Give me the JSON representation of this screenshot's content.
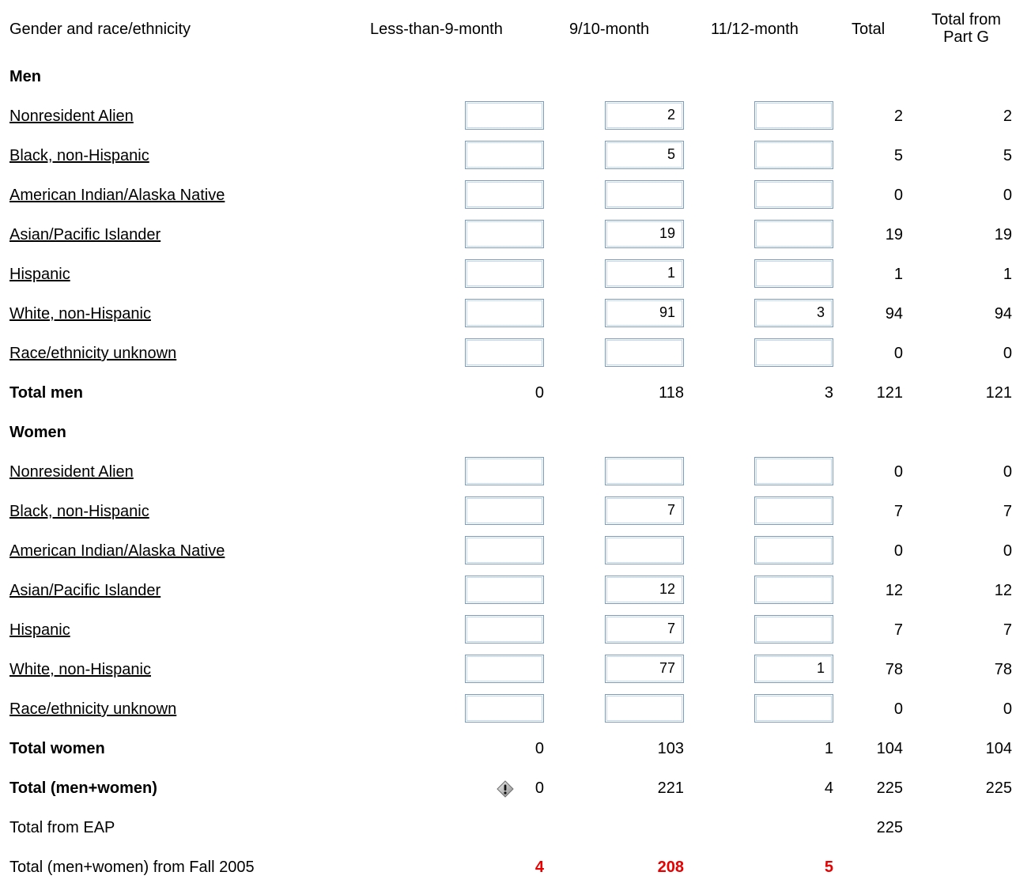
{
  "header": {
    "col_label": "Gender and race/ethnicity",
    "col1": "Less-than-9-month",
    "col2": "9/10-month",
    "col3": "11/12-month",
    "col4": "Total",
    "col5_line1": "Total from",
    "col5_line2": "Part G"
  },
  "men": {
    "section_label": "Men",
    "rows": [
      {
        "label": "Nonresident Alien",
        "c1": "",
        "c2": "2",
        "c3": "",
        "total": "2",
        "partg": "2"
      },
      {
        "label": "Black, non-Hispanic",
        "c1": "",
        "c2": "5",
        "c3": "",
        "total": "5",
        "partg": "5"
      },
      {
        "label": "American Indian/Alaska Native",
        "c1": "",
        "c2": "",
        "c3": "",
        "total": "0",
        "partg": "0"
      },
      {
        "label": "Asian/Pacific Islander",
        "c1": "",
        "c2": "19",
        "c3": "",
        "total": "19",
        "partg": "19"
      },
      {
        "label": "Hispanic",
        "c1": "",
        "c2": "1",
        "c3": "",
        "total": "1",
        "partg": "1"
      },
      {
        "label": "White, non-Hispanic",
        "c1": "",
        "c2": "91",
        "c3": "3",
        "total": "94",
        "partg": "94"
      },
      {
        "label": "Race/ethnicity unknown",
        "c1": "",
        "c2": "",
        "c3": "",
        "total": "0",
        "partg": "0"
      }
    ],
    "total": {
      "label": "Total men",
      "c1": "0",
      "c2": "118",
      "c3": "3",
      "total": "121",
      "partg": "121"
    }
  },
  "women": {
    "section_label": "Women",
    "rows": [
      {
        "label": "Nonresident Alien",
        "c1": "",
        "c2": "",
        "c3": "",
        "total": "0",
        "partg": "0"
      },
      {
        "label": "Black, non-Hispanic",
        "c1": "",
        "c2": "7",
        "c3": "",
        "total": "7",
        "partg": "7"
      },
      {
        "label": "American Indian/Alaska Native",
        "c1": "",
        "c2": "",
        "c3": "",
        "total": "0",
        "partg": "0"
      },
      {
        "label": "Asian/Pacific Islander",
        "c1": "",
        "c2": "12",
        "c3": "",
        "total": "12",
        "partg": "12"
      },
      {
        "label": "Hispanic",
        "c1": "",
        "c2": "7",
        "c3": "",
        "total": "7",
        "partg": "7"
      },
      {
        "label": "White, non-Hispanic",
        "c1": "",
        "c2": "77",
        "c3": "1",
        "total": "78",
        "partg": "78"
      },
      {
        "label": "Race/ethnicity unknown",
        "c1": "",
        "c2": "",
        "c3": "",
        "total": "0",
        "partg": "0"
      }
    ],
    "total": {
      "label": "Total women",
      "c1": "0",
      "c2": "103",
      "c3": "1",
      "total": "104",
      "partg": "104"
    }
  },
  "grand_total": {
    "label": "Total (men+women)",
    "c1": "0",
    "c2": "221",
    "c3": "4",
    "total": "225",
    "partg": "225",
    "warning_icon": "warning-diamond-icon"
  },
  "eap": {
    "label": "Total from EAP",
    "total": "225"
  },
  "prior": {
    "label": "Total (men+women) from Fall 2005",
    "c1": "4",
    "c2": "208",
    "c3": "5"
  },
  "colors": {
    "input_border": "#7a9cc0",
    "prior_value": "#e60000"
  }
}
